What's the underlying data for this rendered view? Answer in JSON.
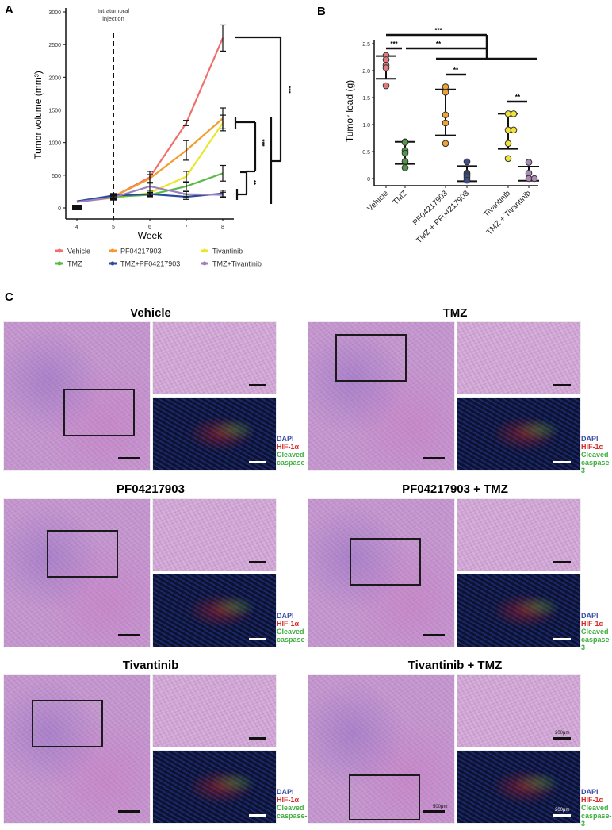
{
  "panels": {
    "a": "A",
    "b": "B",
    "c": "C"
  },
  "chart_data": [
    {
      "type": "line",
      "id": "A",
      "xlabel": "Week",
      "ylabel": "Tumor volume (mm³)",
      "xlim": [
        4,
        8
      ],
      "ylim": [
        0,
        3000
      ],
      "xticks": [
        "4",
        "5",
        "6",
        "7",
        "8"
      ],
      "yticks": [
        "0",
        "500",
        "1000",
        "1500",
        "2000",
        "2500",
        "3000"
      ],
      "x": [
        4,
        5,
        6,
        7,
        8
      ],
      "annotation": "Intratumoral injection",
      "annotation_lines": [
        "Intratumoral",
        "injection"
      ],
      "annotation_x": 5,
      "series": [
        {
          "name": "Vehicle",
          "color": "#ef6f6c",
          "values": [
            100,
            170,
            470,
            1300,
            2600
          ],
          "err": [
            10,
            30,
            90,
            40,
            200
          ]
        },
        {
          "name": "PF04217903",
          "color": "#f39c2b",
          "values": [
            100,
            170,
            450,
            880,
            1370
          ],
          "err": [
            10,
            30,
            60,
            150,
            160
          ]
        },
        {
          "name": "Tivantinib",
          "color": "#e8e82a",
          "values": [
            100,
            150,
            230,
            480,
            1300
          ],
          "err": [
            10,
            30,
            40,
            80,
            120
          ]
        },
        {
          "name": "TMZ",
          "color": "#5cb846",
          "values": [
            100,
            170,
            200,
            330,
            530
          ],
          "err": [
            10,
            30,
            30,
            60,
            120
          ]
        },
        {
          "name": "TMZ+PF04217903",
          "color": "#2c4a9a",
          "values": [
            100,
            190,
            210,
            170,
            220
          ],
          "err": [
            10,
            30,
            30,
            40,
            50
          ]
        },
        {
          "name": "TMZ+Tivantinib",
          "color": "#9b7fc0",
          "values": [
            90,
            160,
            330,
            210,
            200
          ],
          "err": [
            10,
            30,
            60,
            40,
            40
          ]
        }
      ],
      "significance": [
        "***",
        "***",
        "**"
      ]
    },
    {
      "type": "scatter",
      "id": "B",
      "ylabel": "Tumor load (g)",
      "ylim": [
        -0.05,
        2.6
      ],
      "yticks": [
        "0",
        "0.5",
        "1.0",
        "1.5",
        "2.0",
        "2.5"
      ],
      "categories": [
        "Vehicle",
        "TMZ",
        "PF04217903",
        "TMZ + PF04217903",
        "Tivantinib",
        "TMZ + Tivantinib"
      ],
      "groups": [
        {
          "color": "#e07b80",
          "points": [
            2.28,
            2.2,
            2.1,
            2.05,
            1.72
          ],
          "mean": 2.06,
          "range": [
            1.85,
            2.27
          ]
        },
        {
          "color": "#4f9a45",
          "points": [
            0.68,
            0.67,
            0.52,
            0.47,
            0.32,
            0.2
          ],
          "mean": 0.47,
          "range": [
            0.27,
            0.68
          ]
        },
        {
          "color": "#f0a234",
          "points": [
            1.7,
            1.6,
            1.18,
            1.03,
            0.65
          ],
          "mean": 1.22,
          "range": [
            0.8,
            1.65
          ]
        },
        {
          "color": "#3d4f8f",
          "points": [
            0.31,
            0.1,
            0.08,
            0.05,
            0.02,
            -0.03
          ],
          "mean": 0.09,
          "range": [
            -0.05,
            0.23
          ]
        },
        {
          "color": "#f2e33b",
          "points": [
            1.2,
            1.2,
            0.9,
            0.9,
            0.65,
            0.37
          ],
          "mean": 0.87,
          "range": [
            0.55,
            1.2
          ]
        },
        {
          "color": "#a88ab5",
          "points": [
            0.3,
            0.1,
            0.0,
            0.0
          ],
          "mean": 0.09,
          "range": [
            -0.04,
            0.22
          ]
        }
      ],
      "significance": [
        "***",
        "***",
        "**",
        "**",
        "**"
      ]
    }
  ],
  "histology": {
    "legend": {
      "dapi": "DAPI",
      "hif": "HIF-1α",
      "cc1": "Cleaved",
      "cc2": "caspase-3"
    },
    "scale_big": "500μm",
    "scale_small": "200μm",
    "groups": [
      "Vehicle",
      "TMZ",
      "PF04217903",
      "PF04217903 + TMZ",
      "Tivantinib",
      "Tivantinib + TMZ"
    ]
  },
  "colors": {
    "dapi": "#3b4ea8",
    "hif": "#d42a2a",
    "caspase": "#3fae3f"
  }
}
